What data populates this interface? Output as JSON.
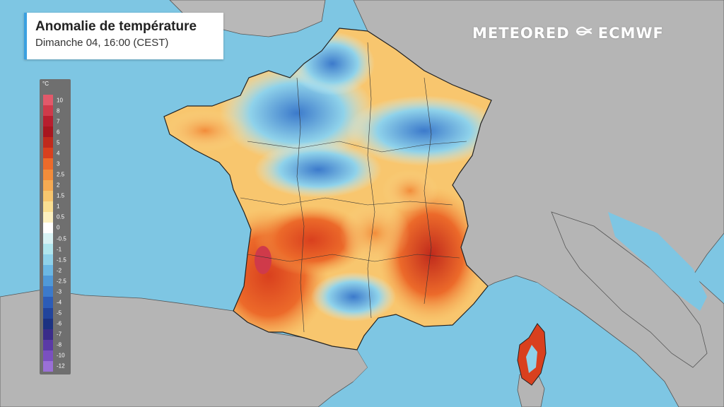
{
  "map": {
    "title": "Anomalie de température",
    "subtitle": "Dimanche 04, 16:00 (CEST)",
    "brand": {
      "meteored": "METEORED",
      "ecmwf": "ECMWF",
      "sep_icon": "ecmwf-swirl-icon"
    },
    "colors": {
      "sea": "#7ec6e3",
      "land_other": "#b5b5b5",
      "border": "#333333"
    },
    "legend": {
      "unit": "°C",
      "steps": [
        {
          "label": "10",
          "color": "#e2596a"
        },
        {
          "label": "8",
          "color": "#cf3a4a"
        },
        {
          "label": "7",
          "color": "#b81e2e"
        },
        {
          "label": "6",
          "color": "#a8161e"
        },
        {
          "label": "5",
          "color": "#c02a1c"
        },
        {
          "label": "4",
          "color": "#d9401e"
        },
        {
          "label": "3",
          "color": "#ec6a2a"
        },
        {
          "label": "2.5",
          "color": "#f28c3a"
        },
        {
          "label": "2",
          "color": "#f6aa52"
        },
        {
          "label": "1.5",
          "color": "#f8c66e"
        },
        {
          "label": "1",
          "color": "#fadf92"
        },
        {
          "label": "0.5",
          "color": "#fcf0c0"
        },
        {
          "label": "0",
          "color": "#ffffff"
        },
        {
          "label": "-0.5",
          "color": "#d8f2f4"
        },
        {
          "label": "-1",
          "color": "#b0e6ee"
        },
        {
          "label": "-1.5",
          "color": "#8fd2ea"
        },
        {
          "label": "-2",
          "color": "#6cb8e4"
        },
        {
          "label": "-2.5",
          "color": "#5099d8"
        },
        {
          "label": "-3",
          "color": "#3c7acb"
        },
        {
          "label": "-4",
          "color": "#2c5cb8"
        },
        {
          "label": "-5",
          "color": "#22449c"
        },
        {
          "label": "-6",
          "color": "#1c3282"
        },
        {
          "label": "-7",
          "color": "#3a2c8a"
        },
        {
          "label": "-8",
          "color": "#5a3aa6"
        },
        {
          "label": "-10",
          "color": "#7a50c0"
        },
        {
          "label": "-12",
          "color": "#9a70d6"
        }
      ]
    }
  }
}
